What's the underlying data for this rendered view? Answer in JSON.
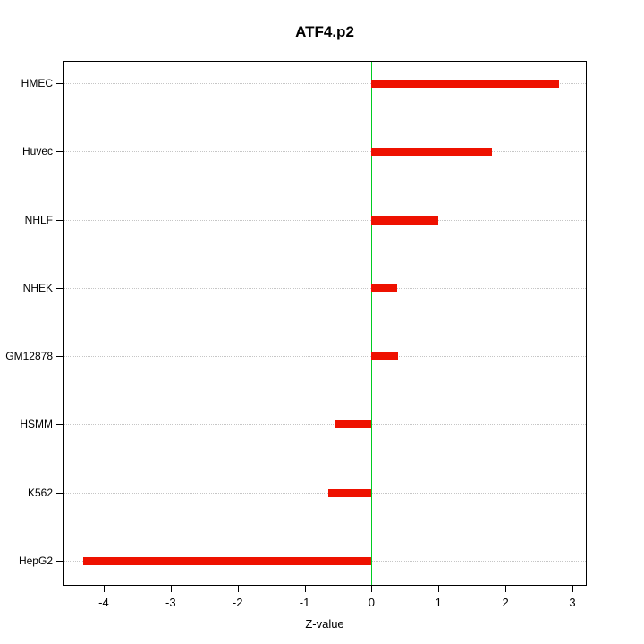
{
  "chart_data": {
    "type": "bar",
    "orientation": "horizontal",
    "title": "ATF4.p2",
    "xlabel": "Z-value",
    "categories": [
      "HMEC",
      "Huvec",
      "NHLF",
      "NHEK",
      "GM12878",
      "HSMM",
      "K562",
      "HepG2"
    ],
    "values": [
      2.8,
      1.8,
      1.0,
      0.38,
      0.4,
      -0.55,
      -0.65,
      -4.3
    ],
    "xlim": [
      -4.6,
      3.2
    ],
    "xticks": [
      -4,
      -3,
      -2,
      -1,
      0,
      1,
      2,
      3
    ],
    "bar_color": "#ee1100",
    "zero_line_color": "#00cc22",
    "grid": true,
    "grid_style": "dotted",
    "legend": "none"
  }
}
